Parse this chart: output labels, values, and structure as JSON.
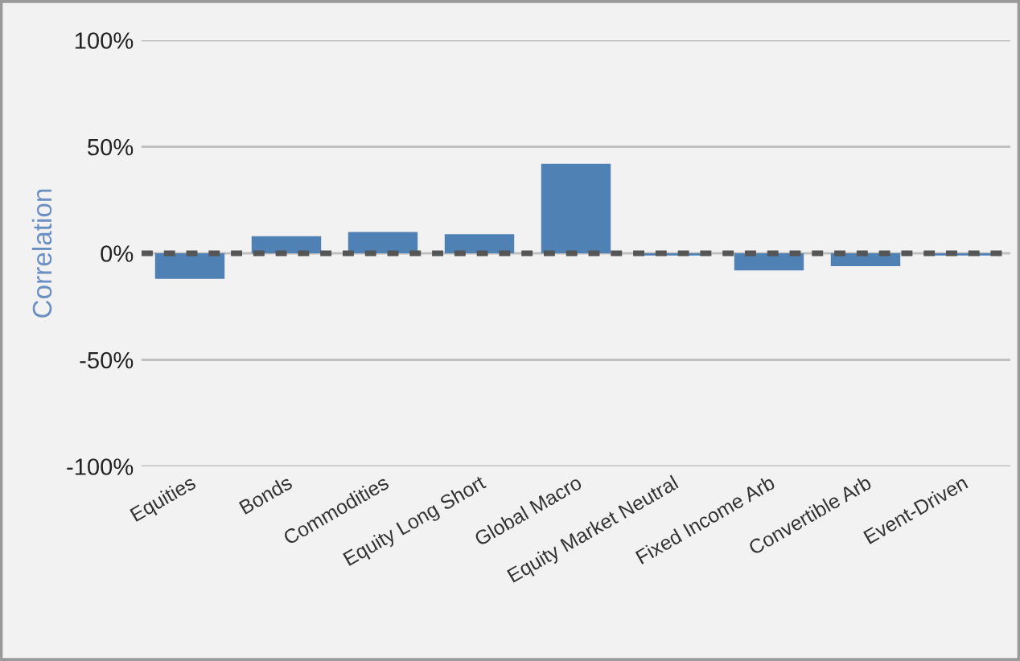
{
  "chart_data": {
    "type": "bar",
    "ylabel": "Correlation",
    "categories": [
      "Equities",
      "Bonds",
      "Commodities",
      "Equity Long Short",
      "Global Macro",
      "Equity Market Neutral",
      "Fixed Income Arb",
      "Convertible Arb",
      "Event-Driven"
    ],
    "series": [
      {
        "color": "#4f81b5",
        "values": [
          -12,
          8,
          10,
          9,
          42,
          -1,
          -8,
          -6,
          -1
        ]
      }
    ],
    "ylim": [
      -100,
      100
    ],
    "yticks": [
      {
        "value": -100,
        "label": "-100%"
      },
      {
        "value": -50,
        "label": "-50%"
      },
      {
        "value": 0,
        "label": "0%"
      },
      {
        "value": 50,
        "label": "50%"
      },
      {
        "value": 100,
        "label": "100%"
      }
    ],
    "grid": "y",
    "ref_lines": [
      {
        "axis": "y",
        "value": 0,
        "color": "#555555",
        "line_style": "dashed"
      }
    ]
  }
}
